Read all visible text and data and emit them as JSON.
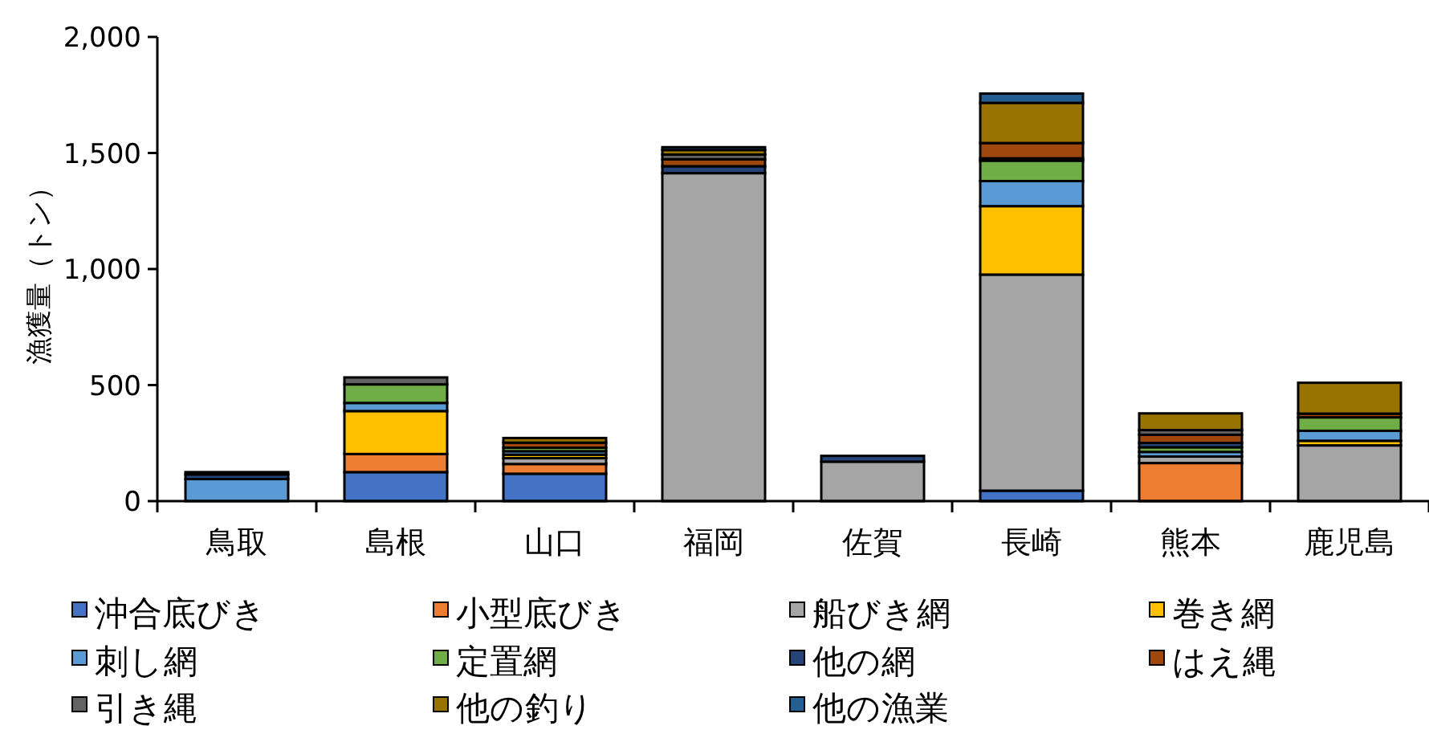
{
  "chart_data": {
    "type": "bar",
    "stacked": true,
    "ylabel": "漁獲量（トン）",
    "categories": [
      "鳥取",
      "島根",
      "山口",
      "福岡",
      "佐賀",
      "長崎",
      "熊本",
      "鹿児島"
    ],
    "ylim": [
      0,
      2000
    ],
    "yticks": [
      {
        "value": 0,
        "label": "0"
      },
      {
        "value": 500,
        "label": "500"
      },
      {
        "value": 1000,
        "label": "1,000"
      },
      {
        "value": 1500,
        "label": "1,500"
      },
      {
        "value": 2000,
        "label": "2,000"
      }
    ],
    "grid": false,
    "legend": "bottom",
    "series": [
      {
        "name": "沖合底びき",
        "color": "#4472c4",
        "values": [
          null,
          125,
          118,
          null,
          null,
          45,
          null,
          null
        ]
      },
      {
        "name": "小型底びき",
        "color": "#ed7d31",
        "values": [
          null,
          78,
          42,
          null,
          null,
          null,
          164,
          null
        ]
      },
      {
        "name": "船びき網",
        "color": "#a5a5a5",
        "values": [
          null,
          null,
          25,
          1413,
          170,
          931,
          28,
          240
        ]
      },
      {
        "name": "巻き網",
        "color": "#ffc000",
        "values": [
          null,
          185,
          15,
          null,
          null,
          295,
          null,
          20
        ]
      },
      {
        "name": "刺し網",
        "color": "#5b9bd5",
        "values": [
          95,
          35,
          15,
          null,
          null,
          108,
          20,
          43
        ]
      },
      {
        "name": "定置網",
        "color": "#70ad47",
        "values": [
          null,
          80,
          15,
          null,
          null,
          88,
          20,
          58
        ]
      },
      {
        "name": "他の網",
        "color": "#264478",
        "values": [
          20,
          null,
          null,
          30,
          25,
          10,
          19,
          null
        ]
      },
      {
        "name": "はえ縄",
        "color": "#9e480e",
        "values": [
          null,
          null,
          22,
          30,
          null,
          66,
          35,
          16
        ]
      },
      {
        "name": "引き縄",
        "color": "#636363",
        "values": [
          null,
          30,
          null,
          20,
          null,
          null,
          20,
          null
        ]
      },
      {
        "name": "他の釣り",
        "color": "#997300",
        "values": [
          null,
          null,
          20,
          20,
          null,
          173,
          72,
          133
        ]
      },
      {
        "name": "他の漁業",
        "color": "#255e91",
        "values": [
          10,
          null,
          null,
          12,
          null,
          40,
          null,
          null
        ]
      }
    ]
  }
}
